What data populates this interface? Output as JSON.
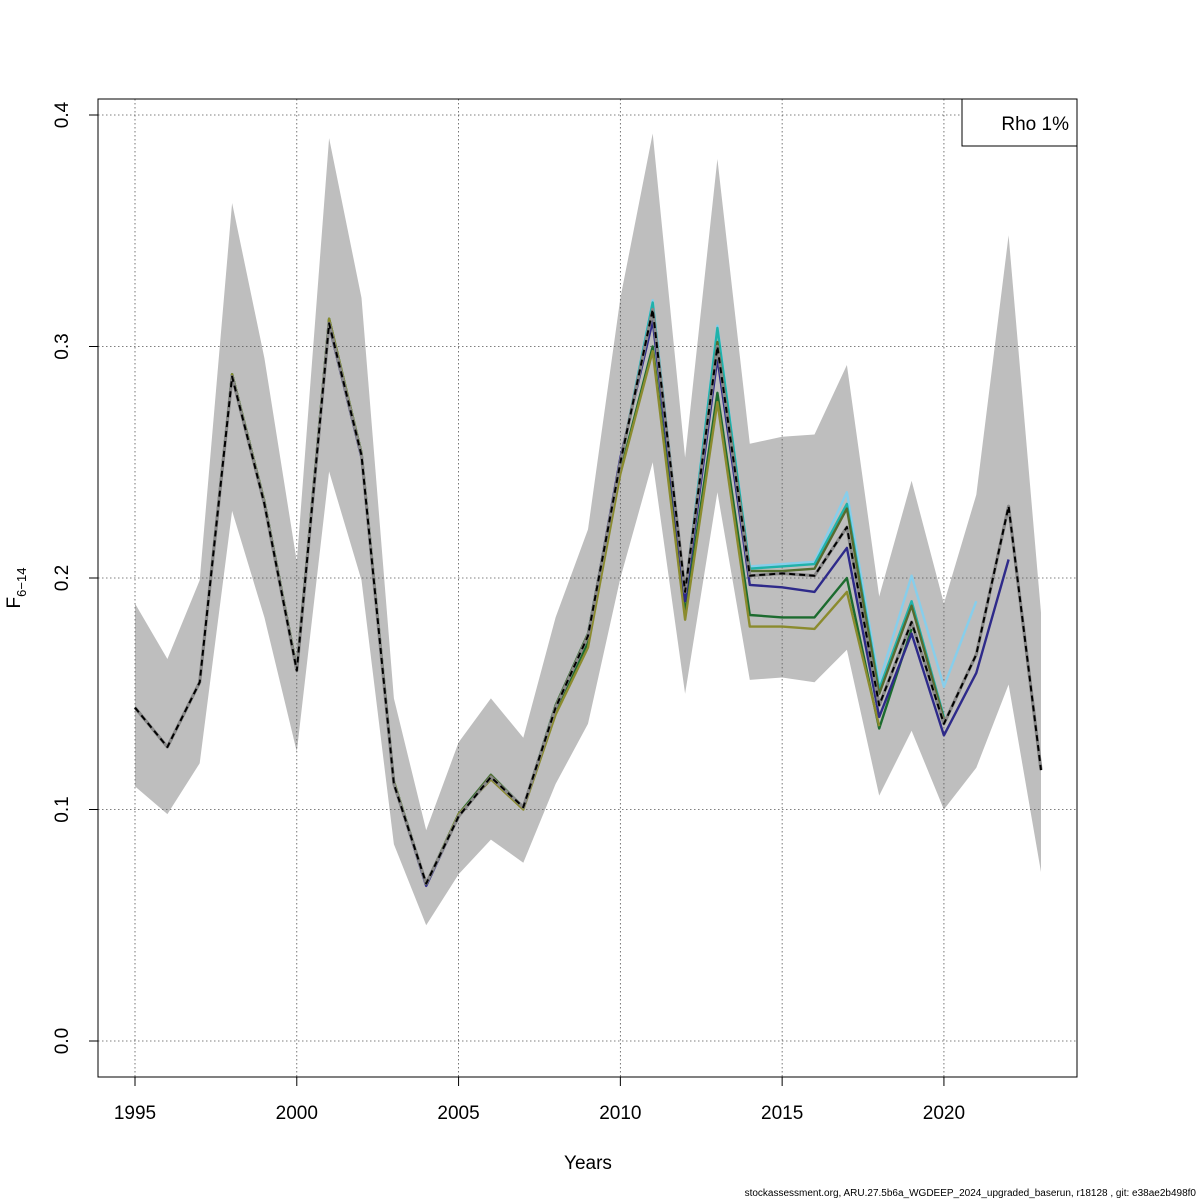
{
  "chart_data": {
    "type": "line",
    "title": "",
    "xlabel": "Years",
    "ylabel_main": "F",
    "ylabel_sub": "6−14",
    "xlim": [
      1995,
      2023
    ],
    "ylim": [
      0,
      0.4
    ],
    "xticks": [
      1995,
      2000,
      2005,
      2010,
      2015,
      2020
    ],
    "yticks": [
      0.0,
      0.1,
      0.2,
      0.3,
      0.4
    ],
    "ytick_labels": [
      "0.0",
      "0.1",
      "0.2",
      "0.3",
      "0.4"
    ],
    "grid": true,
    "legend": {
      "text": "Rho 1%",
      "placement": "top-right"
    },
    "band": {
      "color": "#bebebe",
      "x": [
        1995,
        1996,
        1997,
        1998,
        1999,
        2000,
        2001,
        2002,
        2003,
        2004,
        2005,
        2006,
        2007,
        2008,
        2009,
        2010,
        2011,
        2012,
        2013,
        2014,
        2015,
        2016,
        2017,
        2018,
        2019,
        2020,
        2021,
        2022,
        2023
      ],
      "lower": [
        0.11,
        0.098,
        0.12,
        0.229,
        0.183,
        0.125,
        0.246,
        0.199,
        0.085,
        0.05,
        0.072,
        0.087,
        0.077,
        0.111,
        0.137,
        0.2,
        0.25,
        0.15,
        0.237,
        0.156,
        0.157,
        0.155,
        0.169,
        0.106,
        0.134,
        0.1,
        0.118,
        0.154,
        0.073
      ],
      "upper": [
        0.189,
        0.165,
        0.199,
        0.362,
        0.295,
        0.207,
        0.39,
        0.321,
        0.148,
        0.091,
        0.129,
        0.148,
        0.131,
        0.183,
        0.221,
        0.321,
        0.392,
        0.252,
        0.381,
        0.258,
        0.261,
        0.262,
        0.292,
        0.192,
        0.242,
        0.189,
        0.236,
        0.348,
        0.185
      ]
    },
    "series": [
      {
        "color": "#87ceeb",
        "dashed": false,
        "x": [
          1995,
          1996,
          1997,
          1998,
          1999,
          2000,
          2001,
          2002,
          2003,
          2004,
          2005,
          2006,
          2007,
          2008,
          2009,
          2010,
          2011,
          2012,
          2013,
          2014,
          2015,
          2016,
          2017,
          2018,
          2019,
          2020,
          2021
        ],
        "values": [
          0.144,
          0.127,
          0.155,
          0.288,
          0.233,
          0.161,
          0.312,
          0.254,
          0.112,
          0.068,
          0.098,
          0.115,
          0.101,
          0.145,
          0.176,
          0.25,
          0.32,
          0.194,
          0.309,
          0.205,
          0.206,
          0.207,
          0.237,
          0.155,
          0.201,
          0.153,
          0.19
        ]
      },
      {
        "color": "#20b2aa",
        "dashed": false,
        "x": [
          1995,
          1996,
          1997,
          1998,
          1999,
          2000,
          2001,
          2002,
          2003,
          2004,
          2005,
          2006,
          2007,
          2008,
          2009,
          2010,
          2011,
          2012,
          2013,
          2014,
          2015,
          2016,
          2017,
          2018,
          2019,
          2020
        ],
        "values": [
          0.144,
          0.127,
          0.155,
          0.288,
          0.233,
          0.161,
          0.312,
          0.254,
          0.112,
          0.068,
          0.098,
          0.115,
          0.101,
          0.145,
          0.176,
          0.25,
          0.319,
          0.193,
          0.308,
          0.204,
          0.205,
          0.206,
          0.232,
          0.152,
          0.19,
          0.14
        ]
      },
      {
        "color": "#556b2f",
        "dashed": false,
        "x": [
          1995,
          1996,
          1997,
          1998,
          1999,
          2000,
          2001,
          2002,
          2003,
          2004,
          2005,
          2006,
          2007,
          2008,
          2009,
          2010,
          2011,
          2012,
          2013,
          2014,
          2015,
          2016,
          2017,
          2018,
          2019,
          2020
        ],
        "values": [
          0.144,
          0.127,
          0.155,
          0.288,
          0.233,
          0.161,
          0.312,
          0.254,
          0.112,
          0.068,
          0.098,
          0.115,
          0.101,
          0.145,
          0.176,
          0.25,
          0.315,
          0.192,
          0.302,
          0.203,
          0.203,
          0.204,
          0.23,
          0.15,
          0.188,
          0.139
        ]
      },
      {
        "color": "#1c6b2f",
        "dashed": false,
        "x": [
          1995,
          1996,
          1997,
          1998,
          1999,
          2000,
          2001,
          2002,
          2003,
          2004,
          2005,
          2006,
          2007,
          2008,
          2009,
          2010,
          2011,
          2012,
          2013,
          2014,
          2015,
          2016,
          2017,
          2018,
          2019
        ],
        "values": [
          0.144,
          0.127,
          0.155,
          0.288,
          0.233,
          0.161,
          0.311,
          0.254,
          0.112,
          0.068,
          0.098,
          0.114,
          0.101,
          0.142,
          0.172,
          0.246,
          0.3,
          0.185,
          0.28,
          0.184,
          0.183,
          0.183,
          0.2,
          0.135,
          0.178
        ]
      },
      {
        "color": "#8b8b2e",
        "dashed": false,
        "x": [
          1995,
          1996,
          1997,
          1998,
          1999,
          2000,
          2001,
          2002,
          2003,
          2004,
          2005,
          2006,
          2007,
          2008,
          2009,
          2010,
          2011,
          2012,
          2013,
          2014,
          2015,
          2016,
          2017,
          2018
        ],
        "values": [
          0.144,
          0.127,
          0.155,
          0.288,
          0.233,
          0.161,
          0.312,
          0.254,
          0.112,
          0.068,
          0.098,
          0.113,
          0.1,
          0.141,
          0.17,
          0.245,
          0.298,
          0.182,
          0.276,
          0.179,
          0.179,
          0.178,
          0.194,
          0.136
        ]
      },
      {
        "color": "#2e2a8a",
        "dashed": false,
        "x": [
          1995,
          1996,
          1997,
          1998,
          1999,
          2000,
          2001,
          2002,
          2003,
          2004,
          2005,
          2006,
          2007,
          2008,
          2009,
          2010,
          2011,
          2012,
          2013,
          2014,
          2015,
          2016,
          2017,
          2018,
          2019,
          2020,
          2021,
          2022
        ],
        "values": [
          0.144,
          0.127,
          0.155,
          0.287,
          0.232,
          0.16,
          0.309,
          0.252,
          0.111,
          0.067,
          0.097,
          0.114,
          0.101,
          0.144,
          0.175,
          0.252,
          0.311,
          0.19,
          0.295,
          0.197,
          0.196,
          0.194,
          0.213,
          0.14,
          0.176,
          0.132,
          0.159,
          0.208
        ]
      },
      {
        "color": "#000000",
        "dashed": true,
        "x": [
          1995,
          1996,
          1997,
          1998,
          1999,
          2000,
          2001,
          2002,
          2003,
          2004,
          2005,
          2006,
          2007,
          2008,
          2009,
          2010,
          2011,
          2012,
          2013,
          2014,
          2015,
          2016,
          2017,
          2018,
          2019,
          2020,
          2021,
          2022,
          2023
        ],
        "values": [
          0.144,
          0.127,
          0.155,
          0.287,
          0.232,
          0.16,
          0.31,
          0.253,
          0.111,
          0.068,
          0.097,
          0.114,
          0.101,
          0.144,
          0.175,
          0.25,
          0.316,
          0.194,
          0.3,
          0.201,
          0.202,
          0.201,
          0.222,
          0.145,
          0.181,
          0.137,
          0.167,
          0.231,
          0.117
        ]
      }
    ]
  },
  "footer": "stockassessment.org, ARU.27.5b6a_WGDEEP_2024_upgraded_baserun, r18128 , git: e38ae2b498f0"
}
